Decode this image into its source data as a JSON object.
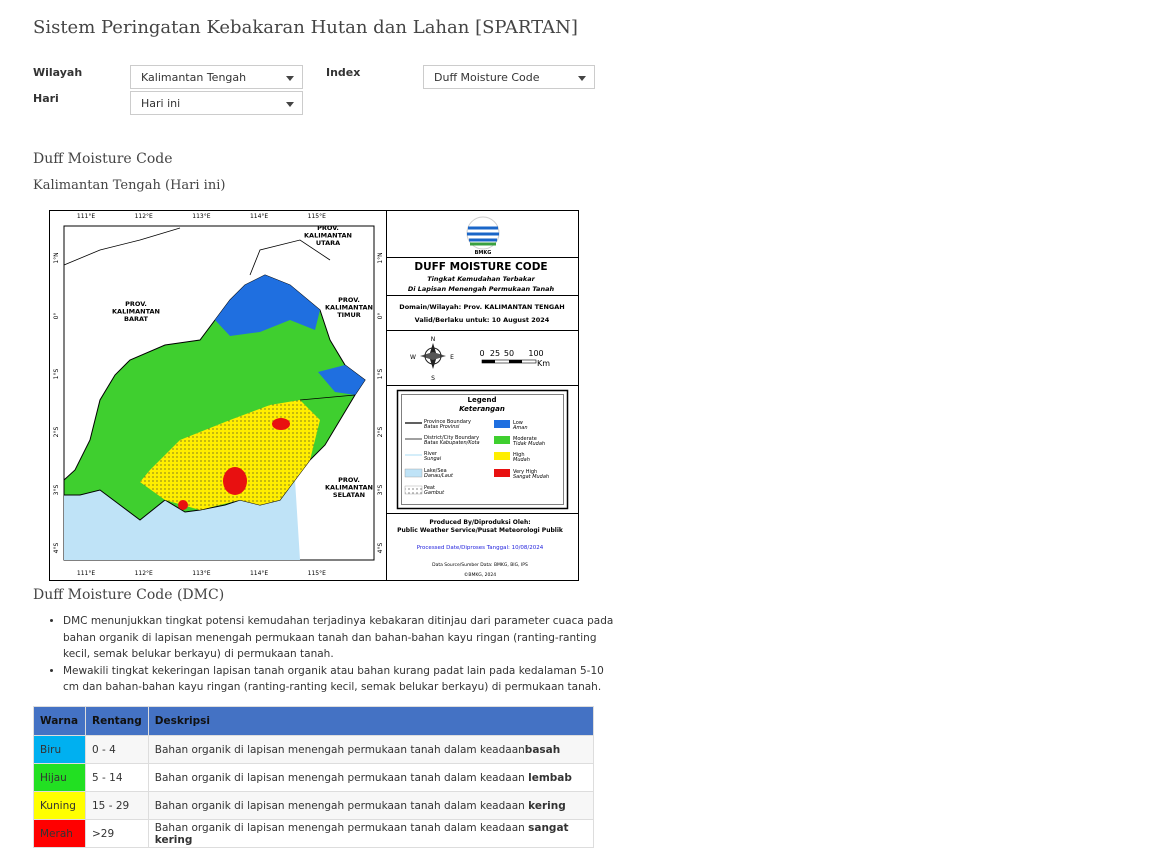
{
  "header": {
    "title": "Sistem Peringatan Kebakaran Hutan dan Lahan [SPARTAN]"
  },
  "form": {
    "wilayah": {
      "label": "Wilayah",
      "value": "Kalimantan Tengah"
    },
    "index": {
      "label": "Index",
      "value": "Duff Moisture Code"
    },
    "hari": {
      "label": "Hari",
      "value": "Hari ini"
    }
  },
  "section": {
    "title": "Duff Moisture Code",
    "subtitle": "Kalimantan Tengah (Hari ini)"
  },
  "map": {
    "lon_ticks": [
      "111°E",
      "112°E",
      "113°E",
      "114°E",
      "115°E"
    ],
    "lat_ticks": [
      "1°N",
      "0°",
      "1°S",
      "2°S",
      "3°S",
      "4°S"
    ],
    "provinces": [
      [
        "PROV.",
        "KALIMANTAN",
        "UTARA"
      ],
      [
        "PROV.",
        "KALIMANTAN",
        "BARAT"
      ],
      [
        "PROV.",
        "KALIMANTAN",
        "TIMUR"
      ],
      [
        "PROV.",
        "KALIMANTAN",
        "SELATAN"
      ]
    ],
    "panel": {
      "agency": "BMKG",
      "title": "DUFF MOISTURE CODE",
      "subtitle": [
        "Tingkat Kemudahan Terbakar",
        "Di Lapisan Menengah Permukaan Tanah"
      ],
      "domain": "Domain/Wilayah: Prov. KALIMANTAN TENGAH",
      "valid": "Valid/Berlaku untuk: 10 August 2024",
      "compass": [
        "N",
        "E",
        "S",
        "W"
      ],
      "scale": {
        "labels": [
          "0",
          "25",
          "50",
          "100"
        ],
        "unit": "Km"
      },
      "legend": {
        "title": "Legend",
        "subtitle": "Keterangan",
        "lines": [
          {
            "en": "Province Boundary",
            "id": "Batas Provinsi"
          },
          {
            "en": "District/City Boundary",
            "id": "Batas Kabupaten/Kota"
          },
          {
            "en": "River",
            "id": "Sungai"
          },
          {
            "en": "Lake/Sea",
            "id": "Danau/Laut"
          },
          {
            "en": "Peat",
            "id": "Gambut"
          }
        ],
        "classes": [
          {
            "en": "Low",
            "id": "Aman",
            "color": "#1f6fe0"
          },
          {
            "en": "Moderate",
            "id": "Tidak Mudah",
            "color": "#3fcf2f"
          },
          {
            "en": "High",
            "id": "Mudah",
            "color": "#ffee00"
          },
          {
            "en": "Very High",
            "id": "Sangat Mudah",
            "color": "#e81010"
          }
        ]
      },
      "produced": {
        "label": "Produced By/Diproduksi Oleh:",
        "agency": "Public Weather Service/Pusat Meteorologi Publik",
        "processed": "Processed Date/Diproses Tanggal: 10/08/2024",
        "source": "Data Source/Sumber Data: BMKG, BIG, IPS",
        "copyright": "©BMKG, 2024"
      }
    }
  },
  "description": {
    "title": "Duff Moisture Code (DMC)",
    "bullets": [
      "DMC menunjukkan tingkat potensi kemudahan terjadinya kebakaran ditinjau dari parameter cuaca pada bahan organik di lapisan menengah permukaan tanah dan bahan-bahan kayu ringan (ranting-ranting kecil, semak belukar berkayu) di permukaan tanah.",
      "Mewakili tingkat kekeringan lapisan tanah organik atau bahan kurang padat lain pada kedalaman 5-10 cm dan bahan-bahan kayu ringan (ranting-ranting kecil, semak belukar berkayu) di permukaan tanah."
    ]
  },
  "table": {
    "columns": [
      "Warna",
      "Rentang",
      "Deskripsi"
    ],
    "rows": [
      [
        "Biru",
        "0 - 4",
        "Bahan organik di lapisan menengah permukaan tanah dalam keadaan",
        "basah",
        "#00b0f0"
      ],
      [
        "Hijau",
        "5 - 14",
        "Bahan organik di lapisan menengah permukaan tanah dalam keadaan ",
        "lembab",
        "#22e022"
      ],
      [
        "Kuning",
        "15 - 29",
        "Bahan organik di lapisan menengah permukaan tanah dalam keadaan ",
        "kering",
        "#ffff00"
      ],
      [
        "Merah",
        ">29",
        "Bahan organik di lapisan menengah permukaan tanah dalam keadaan ",
        "sangat kering",
        "#ff0000"
      ]
    ]
  }
}
